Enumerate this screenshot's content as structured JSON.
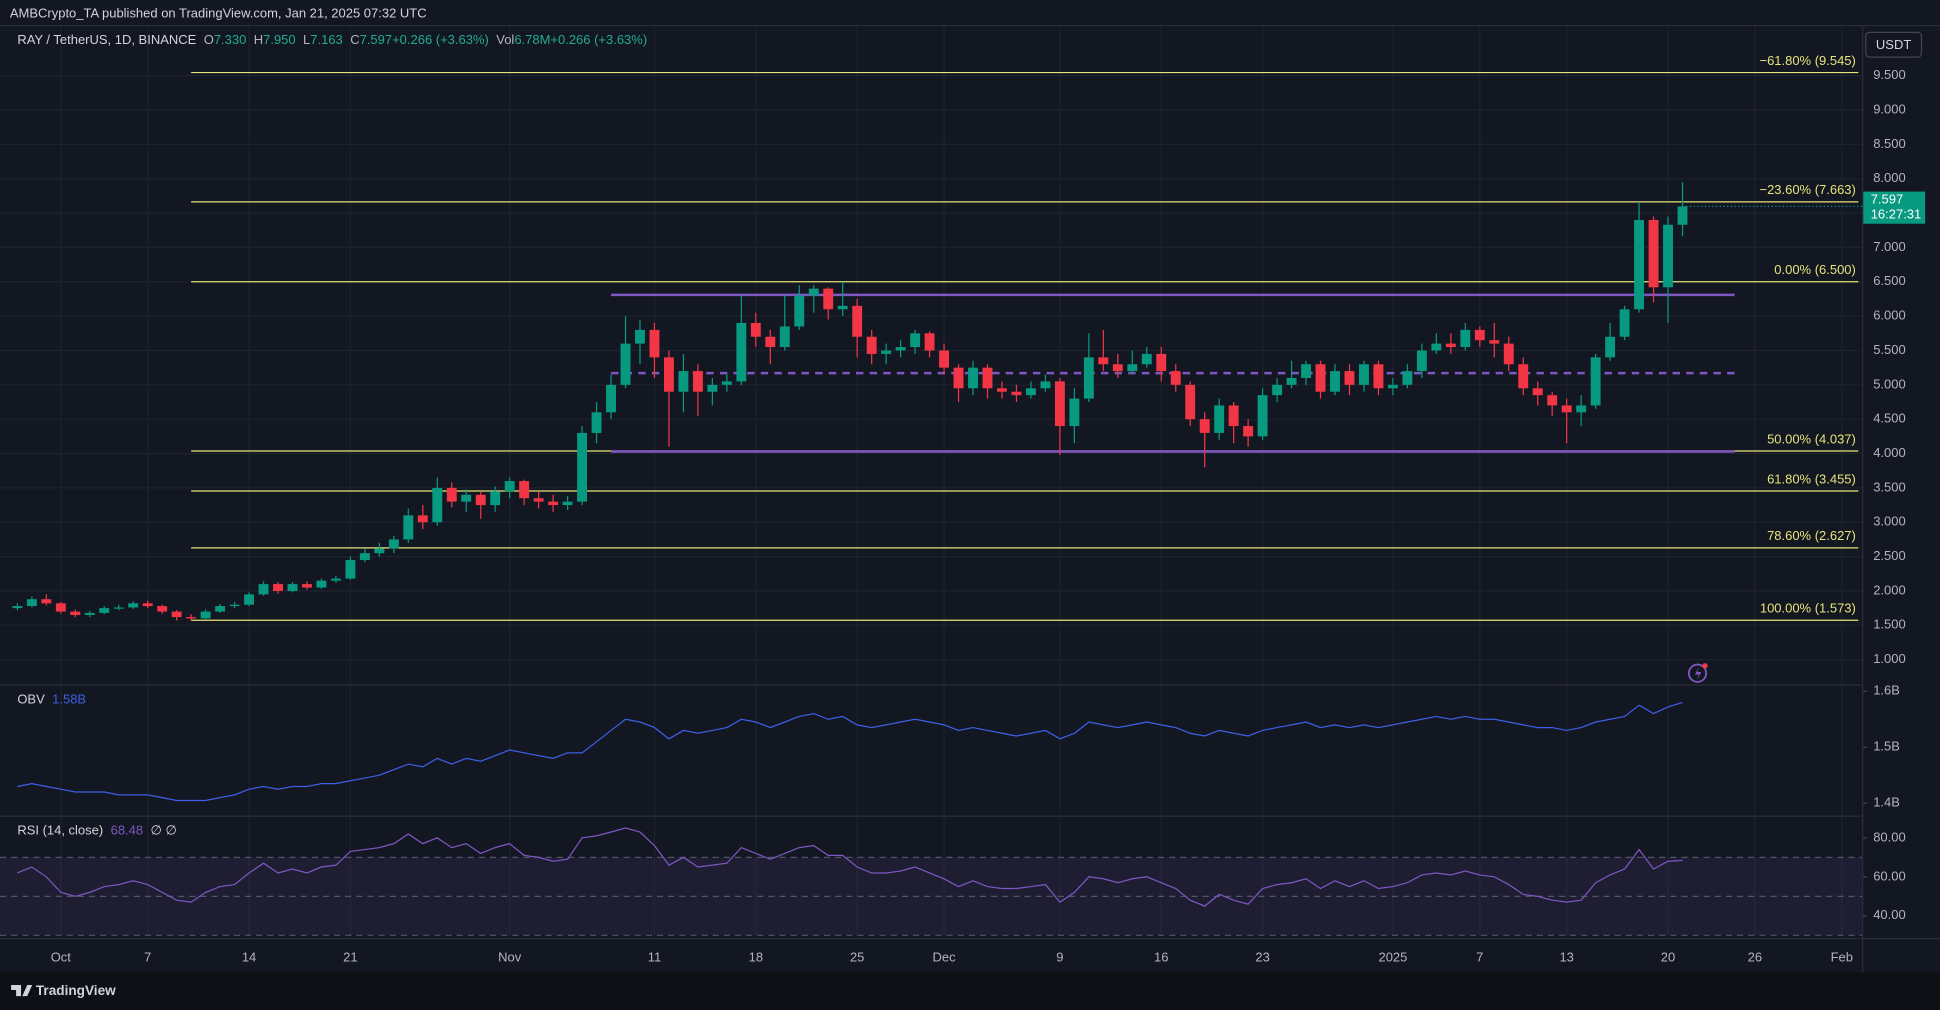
{
  "header": {
    "publisher": "AMBCrypto_TA published on TradingView.com, Jan 21, 2025 07:32 UTC",
    "footer": "TradingView"
  },
  "chart_data": [
    {
      "type": "candlestick",
      "title": "RAY / TetherUS, 1D, BINANCE",
      "legend": [
        {
          "label": "O",
          "value": "7.330"
        },
        {
          "label": "H",
          "value": "7.950"
        },
        {
          "label": "L",
          "value": "7.163"
        },
        {
          "label": "C",
          "value": "7.597"
        },
        {
          "label": "",
          "value": "+0.266 (+3.63%)"
        },
        {
          "label": "Vol",
          "value": "6.78M"
        },
        {
          "label": "",
          "value": "+0.266 (+3.63%)"
        }
      ],
      "currency": "USDT",
      "countdown": "16:27:31",
      "up_color": "#089981",
      "down_color": "#f23645",
      "open": [
        1.75,
        1.78,
        1.88,
        1.82,
        1.7,
        1.65,
        1.68,
        1.75,
        1.76,
        1.82,
        1.78,
        1.7,
        1.62,
        1.6,
        1.7,
        1.78,
        1.8,
        1.95,
        2.1,
        2.0,
        2.1,
        2.05,
        2.15,
        2.18,
        2.45,
        2.55,
        2.62,
        2.75,
        3.1,
        3.0,
        3.5,
        3.3,
        3.4,
        3.25,
        3.45,
        3.6,
        3.35,
        3.3,
        3.25,
        3.3,
        4.3,
        4.6,
        5.0,
        5.6,
        5.8,
        5.4,
        4.9,
        5.2,
        4.9,
        5.0,
        5.05,
        5.9,
        5.7,
        5.55,
        5.85,
        6.3,
        6.4,
        6.1,
        6.15,
        5.7,
        5.45,
        5.5,
        5.55,
        5.75,
        5.5,
        5.25,
        4.95,
        5.25,
        4.95,
        4.9,
        4.85,
        4.95,
        5.05,
        4.4,
        4.8,
        5.4,
        5.3,
        5.2,
        5.3,
        5.45,
        5.2,
        5.0,
        4.5,
        4.3,
        4.7,
        4.4,
        4.25,
        4.85,
        5.0,
        5.1,
        5.3,
        4.9,
        5.2,
        5.0,
        5.3,
        4.95,
        5.0,
        5.2,
        5.5,
        5.6,
        5.55,
        5.8,
        5.65,
        5.6,
        5.3,
        4.95,
        4.85,
        4.7,
        4.6,
        4.7,
        5.4,
        5.7,
        6.1,
        7.4,
        6.42,
        7.33
      ],
      "high": [
        1.82,
        1.92,
        1.95,
        1.84,
        1.73,
        1.71,
        1.78,
        1.8,
        1.85,
        1.86,
        1.8,
        1.72,
        1.66,
        1.73,
        1.81,
        1.84,
        1.98,
        2.14,
        2.13,
        2.13,
        2.14,
        2.18,
        2.22,
        2.5,
        2.62,
        2.7,
        2.8,
        3.2,
        3.25,
        3.65,
        3.58,
        3.48,
        3.45,
        3.52,
        3.65,
        3.62,
        3.45,
        3.4,
        3.38,
        4.4,
        4.75,
        5.15,
        6.0,
        5.95,
        5.9,
        5.5,
        5.45,
        5.3,
        5.1,
        5.15,
        6.3,
        6.05,
        5.8,
        6.3,
        6.45,
        6.45,
        6.42,
        6.5,
        6.25,
        5.8,
        5.6,
        5.65,
        5.8,
        5.78,
        5.6,
        5.3,
        5.35,
        5.3,
        5.05,
        5.0,
        5.05,
        5.15,
        5.1,
        4.95,
        5.75,
        5.8,
        5.45,
        5.5,
        5.55,
        5.55,
        5.3,
        5.05,
        4.6,
        4.8,
        4.75,
        4.5,
        4.95,
        5.1,
        5.35,
        5.35,
        5.35,
        5.3,
        5.3,
        5.35,
        5.35,
        5.1,
        5.3,
        5.6,
        5.75,
        5.75,
        5.9,
        5.85,
        5.9,
        5.7,
        5.4,
        5.05,
        4.9,
        4.8,
        4.85,
        5.45,
        5.9,
        6.15,
        7.66,
        7.45,
        7.45,
        7.95
      ],
      "low": [
        1.72,
        1.76,
        1.79,
        1.67,
        1.62,
        1.62,
        1.66,
        1.72,
        1.74,
        1.75,
        1.67,
        1.57,
        1.573,
        1.58,
        1.68,
        1.75,
        1.78,
        1.93,
        1.96,
        1.98,
        2.02,
        2.03,
        2.12,
        2.16,
        2.42,
        2.5,
        2.55,
        2.7,
        2.9,
        2.95,
        3.22,
        3.15,
        3.05,
        3.15,
        3.35,
        3.25,
        3.2,
        3.15,
        3.18,
        3.25,
        4.15,
        4.5,
        4.95,
        5.3,
        5.1,
        4.1,
        4.6,
        4.55,
        4.7,
        4.9,
        5.0,
        5.55,
        5.3,
        5.5,
        5.8,
        6.05,
        5.95,
        6.0,
        5.4,
        5.3,
        5.3,
        5.4,
        5.45,
        5.4,
        5.15,
        4.75,
        4.85,
        4.8,
        4.8,
        4.75,
        4.8,
        4.9,
        3.98,
        4.15,
        4.75,
        5.2,
        5.1,
        5.15,
        5.25,
        5.05,
        4.9,
        4.4,
        3.8,
        4.2,
        4.15,
        4.1,
        4.2,
        4.75,
        4.95,
        5.0,
        4.8,
        4.85,
        4.85,
        4.9,
        4.85,
        4.85,
        4.95,
        5.1,
        5.45,
        5.45,
        5.5,
        5.55,
        5.4,
        5.2,
        4.85,
        4.7,
        4.55,
        4.15,
        4.4,
        4.65,
        5.35,
        5.65,
        6.05,
        6.2,
        5.9,
        7.163
      ],
      "close": [
        1.78,
        1.88,
        1.82,
        1.7,
        1.65,
        1.68,
        1.75,
        1.76,
        1.82,
        1.78,
        1.7,
        1.62,
        1.6,
        1.7,
        1.78,
        1.8,
        1.95,
        2.1,
        2.0,
        2.1,
        2.05,
        2.15,
        2.18,
        2.45,
        2.55,
        2.62,
        2.75,
        3.1,
        3.0,
        3.5,
        3.3,
        3.4,
        3.25,
        3.45,
        3.6,
        3.35,
        3.3,
        3.25,
        3.3,
        4.3,
        4.6,
        5.0,
        5.6,
        5.8,
        5.4,
        4.9,
        5.2,
        4.9,
        5.0,
        5.05,
        5.9,
        5.7,
        5.55,
        5.85,
        6.3,
        6.4,
        6.1,
        6.15,
        5.7,
        5.45,
        5.5,
        5.55,
        5.75,
        5.5,
        5.25,
        4.95,
        5.25,
        4.95,
        4.9,
        4.85,
        4.95,
        5.05,
        4.4,
        4.8,
        5.4,
        5.3,
        5.2,
        5.3,
        5.45,
        5.2,
        5.0,
        4.5,
        4.3,
        4.7,
        4.4,
        4.25,
        4.85,
        5.0,
        5.1,
        5.3,
        4.9,
        5.2,
        5.0,
        5.3,
        4.95,
        5.0,
        5.2,
        5.5,
        5.6,
        5.55,
        5.8,
        5.65,
        5.6,
        5.3,
        4.95,
        4.85,
        4.7,
        4.6,
        4.7,
        5.4,
        5.7,
        6.1,
        7.4,
        6.42,
        7.33,
        7.597
      ],
      "xlim": [
        -1.2,
        127.4
      ],
      "xticks": [
        {
          "value": 3,
          "label": "Oct"
        },
        {
          "value": 9,
          "label": "7"
        },
        {
          "value": 16,
          "label": "14"
        },
        {
          "value": 23,
          "label": "21"
        },
        {
          "value": 34,
          "label": "Nov"
        },
        {
          "value": 44,
          "label": "11"
        },
        {
          "value": 51,
          "label": "18"
        },
        {
          "value": 58,
          "label": "25"
        },
        {
          "value": 64,
          "label": "Dec"
        },
        {
          "value": 72,
          "label": "9"
        },
        {
          "value": 79,
          "label": "16"
        },
        {
          "value": 86,
          "label": "23"
        },
        {
          "value": 95,
          "label": "2025"
        },
        {
          "value": 101,
          "label": "7"
        },
        {
          "value": 107,
          "label": "13"
        },
        {
          "value": 114,
          "label": "20"
        },
        {
          "value": 120,
          "label": "26"
        },
        {
          "value": 126,
          "label": "Feb"
        }
      ],
      "ylim": [
        0.64,
        10.22
      ],
      "yticks": [
        {
          "value": 1,
          "label": "1.000"
        },
        {
          "value": 1.5,
          "label": "1.500"
        },
        {
          "value": 2,
          "label": "2.000"
        },
        {
          "value": 2.5,
          "label": "2.500"
        },
        {
          "value": 3,
          "label": "3.000"
        },
        {
          "value": 3.5,
          "label": "3.500"
        },
        {
          "value": 4,
          "label": "4.000"
        },
        {
          "value": 4.5,
          "label": "4.500"
        },
        {
          "value": 5,
          "label": "5.000"
        },
        {
          "value": 5.5,
          "label": "5.500"
        },
        {
          "value": 6,
          "label": "6.000"
        },
        {
          "value": 6.5,
          "label": "6.500"
        },
        {
          "value": 7,
          "label": "7.000"
        },
        {
          "value": 7.5,
          "label": "7.500"
        },
        {
          "value": 8,
          "label": "8.000"
        },
        {
          "value": 8.5,
          "label": "8.500"
        },
        {
          "value": 9,
          "label": "9.000"
        },
        {
          "value": 9.5,
          "label": "9.500"
        }
      ],
      "grid": true,
      "fib": {
        "from": 12,
        "color": "#e6e47a",
        "levels": [
          {
            "value": 9.545,
            "label": "−61.80% (9.545)"
          },
          {
            "value": 7.663,
            "label": "−23.60% (7.663)"
          },
          {
            "value": 6.5,
            "label": "0.00% (6.500)"
          },
          {
            "value": 4.037,
            "label": "50.00% (4.037)"
          },
          {
            "value": 3.455,
            "label": "61.80% (3.455)"
          },
          {
            "value": 2.627,
            "label": "78.60% (2.627)"
          },
          {
            "value": 1.573,
            "label": "100.00% (1.573)"
          }
        ]
      },
      "channel": {
        "from": 41,
        "to": 118.6,
        "top": 6.31,
        "mid": 5.17,
        "bottom": 4.03,
        "color": "#7e57c2"
      }
    },
    {
      "type": "line",
      "title": "OBV",
      "legend_value": "1.58B",
      "color": "#3d5fe6",
      "values": [
        1.43,
        1.435,
        1.43,
        1.425,
        1.42,
        1.42,
        1.42,
        1.415,
        1.415,
        1.415,
        1.41,
        1.405,
        1.405,
        1.405,
        1.41,
        1.415,
        1.425,
        1.43,
        1.425,
        1.43,
        1.43,
        1.435,
        1.435,
        1.44,
        1.445,
        1.45,
        1.46,
        1.47,
        1.465,
        1.48,
        1.47,
        1.48,
        1.475,
        1.485,
        1.495,
        1.49,
        1.485,
        1.48,
        1.49,
        1.49,
        1.51,
        1.53,
        1.55,
        1.545,
        1.535,
        1.515,
        1.53,
        1.525,
        1.53,
        1.535,
        1.55,
        1.545,
        1.535,
        1.545,
        1.555,
        1.56,
        1.55,
        1.555,
        1.54,
        1.535,
        1.54,
        1.545,
        1.55,
        1.545,
        1.54,
        1.53,
        1.535,
        1.53,
        1.525,
        1.52,
        1.525,
        1.53,
        1.515,
        1.525,
        1.545,
        1.54,
        1.535,
        1.54,
        1.545,
        1.54,
        1.535,
        1.525,
        1.52,
        1.53,
        1.525,
        1.52,
        1.53,
        1.535,
        1.54,
        1.545,
        1.535,
        1.54,
        1.535,
        1.54,
        1.535,
        1.54,
        1.545,
        1.55,
        1.555,
        1.55,
        1.555,
        1.55,
        1.55,
        1.545,
        1.54,
        1.535,
        1.535,
        1.53,
        1.535,
        1.545,
        1.55,
        1.555,
        1.575,
        1.56,
        1.572,
        1.58
      ],
      "ylim": [
        1.378,
        1.61
      ],
      "yticks": [
        {
          "value": 1.4,
          "label": "1.4B"
        },
        {
          "value": 1.5,
          "label": "1.5B"
        },
        {
          "value": 1.6,
          "label": "1.6B"
        }
      ]
    },
    {
      "type": "line",
      "title": "RSI (14, close)",
      "legend_extra": "∅ ∅",
      "color": "#7e57c2",
      "values": [
        62,
        65,
        60,
        52,
        50,
        52,
        55,
        56,
        58,
        56,
        52,
        48,
        47,
        52,
        55,
        56,
        62,
        67,
        62,
        64,
        62,
        65,
        66,
        73,
        74,
        75,
        77,
        82,
        77,
        80,
        75,
        77,
        72,
        75,
        77,
        71,
        70,
        68,
        69,
        80,
        81,
        83,
        85,
        83,
        76,
        66,
        70,
        65,
        66,
        67,
        75,
        72,
        69,
        72,
        75,
        76,
        71,
        71,
        65,
        62,
        62,
        63,
        65,
        62,
        59,
        55,
        58,
        55,
        54,
        54,
        55,
        56,
        47,
        52,
        60,
        59,
        57,
        59,
        60,
        57,
        54,
        48,
        45,
        51,
        48,
        46,
        54,
        56,
        57,
        59,
        54,
        58,
        55,
        58,
        54,
        55,
        57,
        61,
        62,
        61,
        63,
        61,
        60,
        56,
        51,
        50,
        48,
        47,
        48,
        57,
        61,
        64,
        74,
        64,
        68,
        68.48
      ],
      "ylim": [
        28.6,
        90.8
      ],
      "yticks": [
        {
          "value": 40,
          "label": "40.00"
        },
        {
          "value": 60,
          "label": "60.00"
        },
        {
          "value": 80,
          "label": "80.00"
        }
      ],
      "bands": {
        "upper": 70,
        "middle": 50,
        "lower": 30
      }
    }
  ]
}
